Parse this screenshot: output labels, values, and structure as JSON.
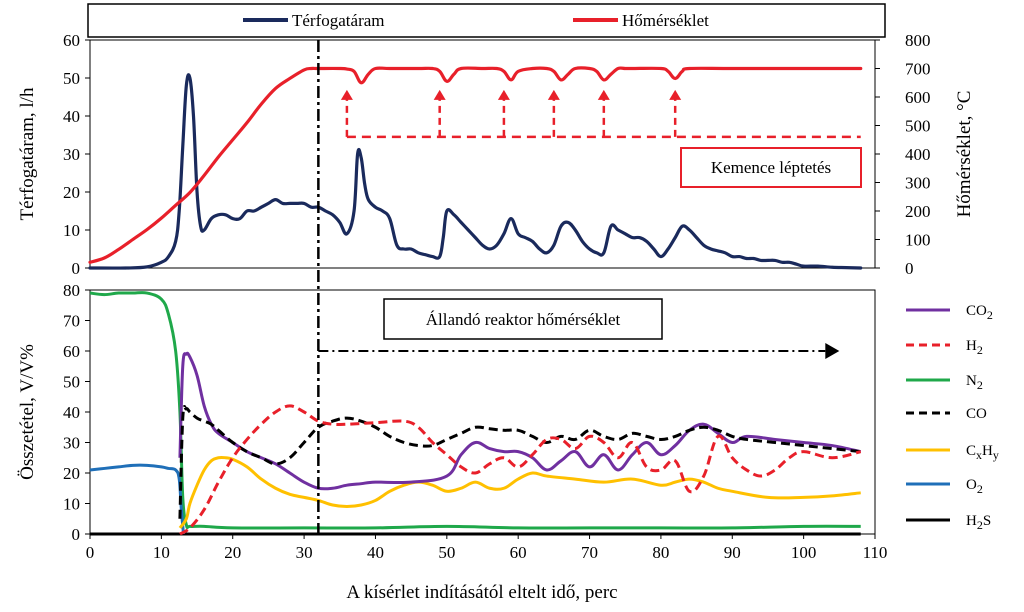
{
  "chart_data": [
    {
      "type": "line",
      "panel": "top",
      "legend": [
        "Térfogatáram",
        "Hőmérséklet"
      ],
      "ylabel_left": "Térfogatáram, l/h",
      "ylabel_right": "Hőmérséklet, °C",
      "ylim_left": [
        0,
        60
      ],
      "ylim_right": [
        0,
        800
      ],
      "yticks_left": [
        "0",
        "10",
        "20",
        "30",
        "40",
        "50",
        "60"
      ],
      "yticks_right": [
        "0",
        "100",
        "200",
        "300",
        "400",
        "500",
        "600",
        "700",
        "800"
      ],
      "xlim": [
        0,
        110
      ],
      "annotation": "Kemence léptetés",
      "step_times": [
        36,
        49,
        58,
        65,
        72,
        82
      ],
      "vline_x": 32,
      "series": [
        {
          "name": "Térfogatáram",
          "axis": "left",
          "color": "#1a2a5c",
          "x": [
            0,
            5,
            8,
            10,
            11,
            12,
            12.5,
            13,
            13.5,
            14,
            14.5,
            15,
            15.5,
            16,
            17,
            18,
            19,
            20,
            21,
            22,
            23,
            24,
            25,
            26,
            27,
            28,
            29,
            30,
            31,
            32,
            33,
            34,
            35,
            36,
            37,
            37.5,
            38,
            38.5,
            39,
            40,
            41,
            42,
            43,
            44,
            45,
            46,
            47,
            48,
            49,
            49.5,
            50,
            51,
            52,
            53,
            54,
            55,
            56,
            57,
            58,
            59,
            60,
            61,
            62,
            63,
            64,
            65,
            66,
            67,
            68,
            69,
            70,
            71,
            72,
            73,
            74,
            75,
            76,
            77,
            78,
            79,
            80,
            81,
            82,
            83,
            84,
            85,
            86,
            87,
            88,
            89,
            90,
            91,
            92,
            93,
            94,
            95,
            96,
            97,
            98,
            99,
            100,
            102,
            104,
            106,
            108
          ],
          "values": [
            0,
            0,
            0.3,
            1.5,
            3,
            7,
            15,
            32,
            48,
            50,
            40,
            20,
            11,
            10,
            13,
            14,
            14,
            13,
            13,
            15,
            15,
            16,
            17,
            18,
            17,
            17,
            17,
            17,
            16,
            16,
            15,
            14,
            12,
            9,
            15,
            30,
            29,
            22,
            18,
            16,
            15,
            13,
            6,
            5,
            5,
            4,
            3.5,
            3,
            3,
            8,
            15,
            14,
            12,
            10,
            8,
            6,
            5,
            6,
            9,
            13,
            9,
            8,
            7,
            5,
            4,
            6,
            11,
            12,
            10,
            7,
            5,
            4,
            4,
            11,
            10,
            9,
            8,
            8,
            7,
            5,
            3,
            5,
            8,
            11,
            10,
            8,
            6,
            5,
            4.5,
            4,
            3,
            3,
            2.5,
            2.5,
            2,
            2,
            2,
            1.5,
            1.5,
            1,
            0.5,
            0.5,
            0.2,
            0.1,
            0
          ]
        },
        {
          "name": "Hőmérséklet",
          "axis": "right",
          "color": "#e8202a",
          "x": [
            0,
            2,
            4,
            6,
            8,
            10,
            12,
            14,
            16,
            18,
            20,
            22,
            24,
            26,
            28,
            30,
            31,
            32,
            35,
            36,
            37,
            38,
            39,
            40,
            42,
            46,
            48,
            49,
            50,
            51,
            52,
            55,
            57,
            58,
            59,
            60,
            62,
            64,
            65,
            66,
            67,
            68,
            70,
            71,
            72,
            73,
            74,
            75,
            76,
            80,
            81,
            82,
            83,
            84,
            90,
            100,
            108
          ],
          "values": [
            20,
            35,
            65,
            100,
            135,
            175,
            220,
            265,
            325,
            390,
            450,
            510,
            575,
            630,
            665,
            695,
            700,
            700,
            700,
            698,
            690,
            650,
            680,
            700,
            700,
            700,
            700,
            690,
            655,
            680,
            700,
            700,
            700,
            690,
            660,
            690,
            700,
            700,
            690,
            660,
            680,
            700,
            700,
            690,
            660,
            680,
            700,
            700,
            700,
            700,
            690,
            665,
            690,
            700,
            700,
            700,
            700
          ]
        }
      ]
    },
    {
      "type": "line",
      "panel": "bottom",
      "ylabel": "Összetétel, V/V%",
      "ylim": [
        0,
        80
      ],
      "yticks": [
        "0",
        "10",
        "20",
        "30",
        "40",
        "50",
        "60",
        "70",
        "80"
      ],
      "xlabel": "A kísérlet indításától eltelt idő, perc",
      "xlim": [
        0,
        110
      ],
      "xticks": [
        "0",
        "10",
        "20",
        "30",
        "40",
        "50",
        "60",
        "70",
        "80",
        "90",
        "100",
        "110"
      ],
      "annotation": "Állandó reaktor hőmérséklet",
      "arrow_from_x": 32,
      "arrow_to_x": 105,
      "arrow_y": 60,
      "vline_x": 32,
      "series": [
        {
          "name": "CO2",
          "label_main": "CO",
          "label_sub": "2",
          "color": "#7030a0",
          "dash": "solid",
          "x": [
            12.6,
            13,
            13.5,
            14,
            15,
            16,
            17,
            18,
            20,
            22,
            24,
            26,
            28,
            30,
            32,
            34,
            36,
            38,
            40,
            45,
            50,
            52,
            54,
            56,
            58,
            60,
            62,
            64,
            66,
            68,
            70,
            72,
            74,
            76,
            78,
            80,
            82,
            84,
            86,
            88,
            90,
            92,
            96,
            100,
            104,
            108
          ],
          "values": [
            25,
            55,
            59,
            58,
            52,
            42,
            36,
            33,
            30,
            27,
            25,
            23,
            20,
            17,
            15,
            15,
            16,
            16.5,
            17,
            17,
            19,
            26,
            30,
            28,
            27,
            27,
            25,
            21,
            24,
            27,
            22,
            26,
            21,
            26,
            30,
            26,
            29,
            34,
            36,
            33,
            30,
            32,
            31,
            30,
            29,
            27
          ]
        },
        {
          "name": "H2",
          "label_main": "H",
          "label_sub": "2",
          "color": "#e8202a",
          "dash": "dashed",
          "x": [
            12.6,
            14,
            16,
            18,
            20,
            22,
            24,
            26,
            28,
            30,
            32,
            34,
            36,
            40,
            44,
            46,
            48,
            50,
            52,
            54,
            56,
            58,
            60,
            62,
            64,
            66,
            68,
            70,
            72,
            74,
            76,
            78,
            80,
            82,
            84,
            86,
            88,
            90,
            92,
            94,
            96,
            98,
            100,
            104,
            108
          ],
          "values": [
            0,
            2,
            8,
            17,
            25,
            31,
            36,
            40,
            42,
            40,
            37,
            36,
            36,
            36.5,
            37,
            35,
            30,
            26,
            22,
            20,
            23,
            25,
            22,
            26,
            31,
            31,
            28,
            32,
            30,
            25,
            30,
            22,
            21,
            24,
            14,
            19,
            32,
            25,
            21,
            19,
            21,
            25,
            27,
            25,
            27
          ]
        },
        {
          "name": "N2",
          "label_main": "N",
          "label_sub": "2",
          "color": "#1fa84a",
          "dash": "solid",
          "x": [
            0,
            2,
            4,
            6,
            8,
            10,
            11,
            12,
            12.6,
            13,
            13.5,
            14,
            16,
            20,
            30,
            40,
            50,
            60,
            70,
            80,
            90,
            100,
            108
          ],
          "values": [
            79,
            78.5,
            79,
            79,
            79,
            77,
            72,
            60,
            40,
            12,
            3,
            2.5,
            2.5,
            2,
            2,
            2,
            2.5,
            2,
            2,
            2,
            2,
            2.5,
            2.5
          ]
        },
        {
          "name": "CO",
          "label_main": "CO",
          "label_sub": "",
          "color": "#000000",
          "dash": "dashed",
          "x": [
            12.6,
            13,
            13.5,
            14,
            15,
            16,
            17,
            18,
            20,
            22,
            24,
            26,
            28,
            30,
            32,
            34,
            36,
            38,
            40,
            42,
            44,
            46,
            48,
            50,
            52,
            54,
            56,
            58,
            60,
            62,
            64,
            66,
            68,
            70,
            72,
            74,
            76,
            78,
            80,
            82,
            84,
            86,
            88,
            90,
            92,
            96,
            100,
            104,
            108
          ],
          "values": [
            5,
            38,
            41,
            40,
            38,
            37,
            36,
            34,
            30,
            27,
            25,
            23,
            25,
            30,
            35,
            37,
            38,
            37,
            35,
            32,
            30,
            29,
            29,
            31,
            33,
            35,
            34.5,
            34,
            34,
            32,
            30,
            32,
            31,
            34,
            32,
            31,
            33,
            32,
            31,
            32,
            34,
            35,
            34,
            32,
            31,
            30,
            29,
            28,
            27
          ]
        },
        {
          "name": "CxHy",
          "label_main": "C",
          "label_sub": "x",
          "label_main2": "H",
          "label_sub2": "y",
          "color": "#ffc000",
          "dash": "solid",
          "x": [
            12.6,
            13.5,
            14,
            15,
            16,
            17,
            18,
            19,
            20,
            22,
            24,
            26,
            28,
            30,
            32,
            34,
            36,
            38,
            40,
            42,
            44,
            46,
            48,
            50,
            52,
            54,
            56,
            58,
            60,
            62,
            64,
            68,
            72,
            76,
            80,
            82,
            84,
            86,
            88,
            90,
            95,
            100,
            104,
            108
          ],
          "values": [
            2,
            5,
            10,
            16,
            21,
            24,
            25,
            25,
            24.5,
            22,
            18,
            15,
            13,
            12,
            11,
            9.5,
            9,
            9.5,
            11,
            14,
            16,
            17,
            16,
            14,
            15,
            17,
            15,
            15,
            18,
            20,
            19,
            18,
            17,
            18,
            16,
            17,
            18,
            17,
            15,
            14,
            12,
            12,
            12.5,
            13.5
          ]
        },
        {
          "name": "O2",
          "label_main": "O",
          "label_sub": "2",
          "color": "#1f6fb8",
          "dash": "solid",
          "x": [
            0,
            2,
            4,
            6,
            8,
            10,
            11,
            12,
            12.5,
            12.8,
            13.1
          ],
          "values": [
            21,
            21.5,
            22,
            22.5,
            22.5,
            22,
            21.5,
            21,
            18,
            8,
            0
          ]
        },
        {
          "name": "H2S",
          "label_main": "H",
          "label_sub": "2",
          "label_main2": "S",
          "label_sub2": "",
          "color": "#000000",
          "dash": "solid",
          "x": [
            0,
            12,
            14,
            30,
            50,
            70,
            90,
            108
          ],
          "values": [
            0,
            0,
            0,
            0,
            0,
            0,
            0,
            0
          ]
        }
      ]
    }
  ]
}
